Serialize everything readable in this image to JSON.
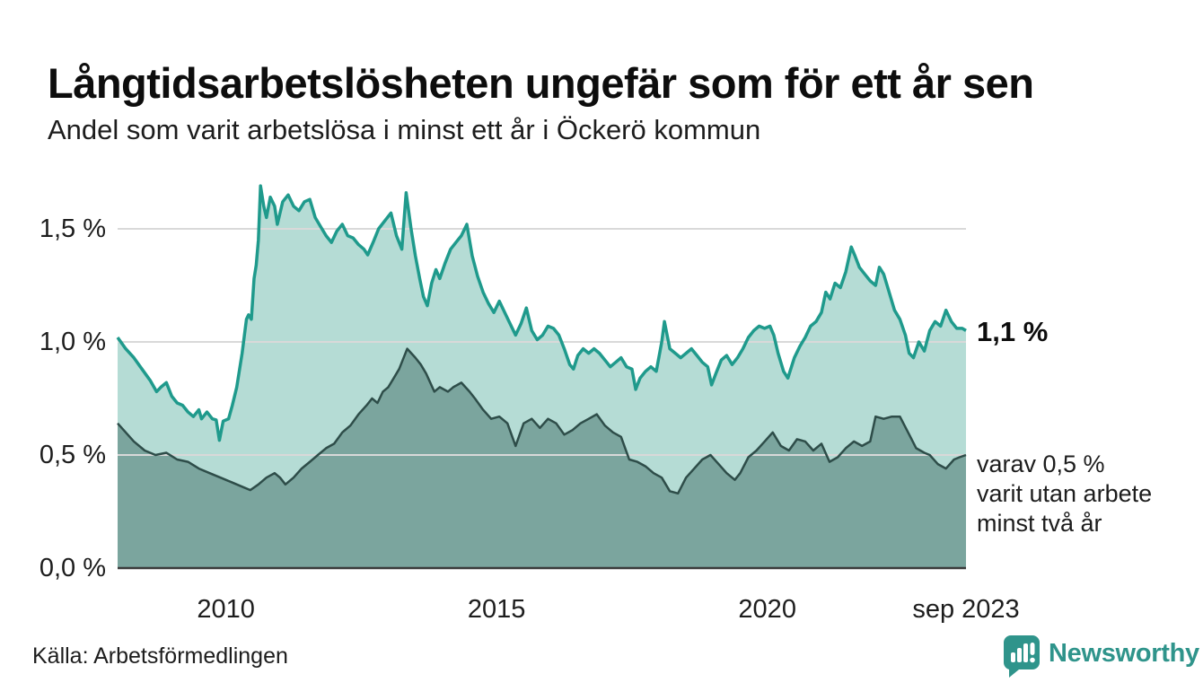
{
  "header": {
    "title": "Långtidsarbetslösheten ungefär som för ett år sen",
    "subtitle": "Andel som varit arbetslösa i minst ett år i Öckerö kommun"
  },
  "chart_data": {
    "type": "area",
    "title": "Långtidsarbetslösheten ungefär som för ett år sen",
    "subtitle": "Andel som varit arbetslösa i minst ett år i Öckerö kommun",
    "xlabel": "",
    "ylabel": "",
    "x_domain": [
      2008.0,
      2023.67
    ],
    "ylim": [
      0,
      1.78
    ],
    "grid": true,
    "y_ticks": [
      {
        "v": 0.0,
        "label": "0,0 %"
      },
      {
        "v": 0.5,
        "label": "0,5 %"
      },
      {
        "v": 1.0,
        "label": "1,0 %"
      },
      {
        "v": 1.5,
        "label": "1,5 %"
      }
    ],
    "x_ticks": [
      {
        "v": 2010,
        "label": "2010"
      },
      {
        "v": 2015,
        "label": "2015"
      },
      {
        "v": 2020,
        "label": "2020"
      },
      {
        "v": 2023.67,
        "label": "sep 2023"
      }
    ],
    "series": [
      {
        "name": "Andel som varit arbetslösa i minst ett år",
        "line_color": "#1f9a8c",
        "fill_color": "#b5dcd5",
        "line_width": 3.5,
        "points": [
          [
            2008.0,
            1.02
          ],
          [
            2008.15,
            0.97
          ],
          [
            2008.3,
            0.93
          ],
          [
            2008.45,
            0.88
          ],
          [
            2008.6,
            0.83
          ],
          [
            2008.72,
            0.78
          ],
          [
            2008.8,
            0.8
          ],
          [
            2008.9,
            0.82
          ],
          [
            2009.0,
            0.76
          ],
          [
            2009.1,
            0.73
          ],
          [
            2009.2,
            0.72
          ],
          [
            2009.3,
            0.69
          ],
          [
            2009.4,
            0.67
          ],
          [
            2009.5,
            0.7
          ],
          [
            2009.55,
            0.66
          ],
          [
            2009.65,
            0.69
          ],
          [
            2009.75,
            0.66
          ],
          [
            2009.82,
            0.655
          ],
          [
            2009.88,
            0.565
          ],
          [
            2009.95,
            0.65
          ],
          [
            2010.05,
            0.66
          ],
          [
            2010.12,
            0.72
          ],
          [
            2010.2,
            0.8
          ],
          [
            2010.3,
            0.95
          ],
          [
            2010.38,
            1.1
          ],
          [
            2010.42,
            1.12
          ],
          [
            2010.47,
            1.1
          ],
          [
            2010.52,
            1.28
          ],
          [
            2010.56,
            1.34
          ],
          [
            2010.6,
            1.45
          ],
          [
            2010.64,
            1.69
          ],
          [
            2010.7,
            1.6
          ],
          [
            2010.75,
            1.55
          ],
          [
            2010.82,
            1.64
          ],
          [
            2010.9,
            1.6
          ],
          [
            2010.95,
            1.52
          ],
          [
            2011.05,
            1.62
          ],
          [
            2011.15,
            1.65
          ],
          [
            2011.25,
            1.6
          ],
          [
            2011.35,
            1.58
          ],
          [
            2011.45,
            1.62
          ],
          [
            2011.55,
            1.63
          ],
          [
            2011.65,
            1.55
          ],
          [
            2011.75,
            1.51
          ],
          [
            2011.85,
            1.47
          ],
          [
            2011.95,
            1.44
          ],
          [
            2012.05,
            1.49
          ],
          [
            2012.15,
            1.52
          ],
          [
            2012.25,
            1.47
          ],
          [
            2012.35,
            1.46
          ],
          [
            2012.45,
            1.43
          ],
          [
            2012.55,
            1.41
          ],
          [
            2012.62,
            1.385
          ],
          [
            2012.72,
            1.44
          ],
          [
            2012.82,
            1.5
          ],
          [
            2012.95,
            1.54
          ],
          [
            2013.05,
            1.57
          ],
          [
            2013.15,
            1.47
          ],
          [
            2013.25,
            1.41
          ],
          [
            2013.33,
            1.66
          ],
          [
            2013.42,
            1.5
          ],
          [
            2013.5,
            1.38
          ],
          [
            2013.58,
            1.28
          ],
          [
            2013.65,
            1.2
          ],
          [
            2013.72,
            1.16
          ],
          [
            2013.8,
            1.26
          ],
          [
            2013.88,
            1.32
          ],
          [
            2013.95,
            1.28
          ],
          [
            2014.05,
            1.35
          ],
          [
            2014.15,
            1.41
          ],
          [
            2014.25,
            1.44
          ],
          [
            2014.35,
            1.47
          ],
          [
            2014.45,
            1.52
          ],
          [
            2014.55,
            1.38
          ],
          [
            2014.65,
            1.29
          ],
          [
            2014.75,
            1.22
          ],
          [
            2014.85,
            1.17
          ],
          [
            2014.95,
            1.13
          ],
          [
            2015.05,
            1.18
          ],
          [
            2015.15,
            1.13
          ],
          [
            2015.25,
            1.08
          ],
          [
            2015.35,
            1.03
          ],
          [
            2015.45,
            1.08
          ],
          [
            2015.55,
            1.15
          ],
          [
            2015.65,
            1.05
          ],
          [
            2015.75,
            1.01
          ],
          [
            2015.85,
            1.03
          ],
          [
            2015.95,
            1.07
          ],
          [
            2016.05,
            1.06
          ],
          [
            2016.15,
            1.03
          ],
          [
            2016.25,
            0.97
          ],
          [
            2016.35,
            0.9
          ],
          [
            2016.42,
            0.88
          ],
          [
            2016.5,
            0.94
          ],
          [
            2016.6,
            0.97
          ],
          [
            2016.7,
            0.95
          ],
          [
            2016.8,
            0.97
          ],
          [
            2016.9,
            0.95
          ],
          [
            2017.0,
            0.92
          ],
          [
            2017.1,
            0.89
          ],
          [
            2017.2,
            0.91
          ],
          [
            2017.3,
            0.93
          ],
          [
            2017.4,
            0.89
          ],
          [
            2017.5,
            0.88
          ],
          [
            2017.57,
            0.79
          ],
          [
            2017.65,
            0.84
          ],
          [
            2017.75,
            0.87
          ],
          [
            2017.85,
            0.89
          ],
          [
            2017.95,
            0.87
          ],
          [
            2018.05,
            1.0
          ],
          [
            2018.1,
            1.09
          ],
          [
            2018.2,
            0.97
          ],
          [
            2018.3,
            0.95
          ],
          [
            2018.4,
            0.93
          ],
          [
            2018.5,
            0.95
          ],
          [
            2018.6,
            0.97
          ],
          [
            2018.7,
            0.94
          ],
          [
            2018.8,
            0.91
          ],
          [
            2018.9,
            0.89
          ],
          [
            2018.97,
            0.81
          ],
          [
            2019.05,
            0.86
          ],
          [
            2019.15,
            0.92
          ],
          [
            2019.25,
            0.94
          ],
          [
            2019.35,
            0.9
          ],
          [
            2019.45,
            0.93
          ],
          [
            2019.55,
            0.97
          ],
          [
            2019.65,
            1.02
          ],
          [
            2019.75,
            1.05
          ],
          [
            2019.85,
            1.07
          ],
          [
            2019.95,
            1.06
          ],
          [
            2020.05,
            1.07
          ],
          [
            2020.12,
            1.03
          ],
          [
            2020.2,
            0.95
          ],
          [
            2020.3,
            0.87
          ],
          [
            2020.38,
            0.84
          ],
          [
            2020.5,
            0.93
          ],
          [
            2020.6,
            0.98
          ],
          [
            2020.7,
            1.02
          ],
          [
            2020.8,
            1.07
          ],
          [
            2020.9,
            1.09
          ],
          [
            2021.0,
            1.13
          ],
          [
            2021.08,
            1.22
          ],
          [
            2021.16,
            1.19
          ],
          [
            2021.25,
            1.26
          ],
          [
            2021.35,
            1.24
          ],
          [
            2021.45,
            1.31
          ],
          [
            2021.55,
            1.42
          ],
          [
            2021.62,
            1.38
          ],
          [
            2021.7,
            1.33
          ],
          [
            2021.8,
            1.3
          ],
          [
            2021.9,
            1.27
          ],
          [
            2022.0,
            1.25
          ],
          [
            2022.07,
            1.33
          ],
          [
            2022.15,
            1.3
          ],
          [
            2022.25,
            1.22
          ],
          [
            2022.35,
            1.14
          ],
          [
            2022.45,
            1.1
          ],
          [
            2022.55,
            1.03
          ],
          [
            2022.62,
            0.95
          ],
          [
            2022.7,
            0.93
          ],
          [
            2022.8,
            1.0
          ],
          [
            2022.9,
            0.96
          ],
          [
            2023.0,
            1.05
          ],
          [
            2023.1,
            1.09
          ],
          [
            2023.2,
            1.07
          ],
          [
            2023.3,
            1.14
          ],
          [
            2023.4,
            1.09
          ],
          [
            2023.5,
            1.06
          ],
          [
            2023.6,
            1.06
          ],
          [
            2023.67,
            1.05
          ]
        ]
      },
      {
        "name": "varav utan arbete minst två år",
        "line_color": "#2e4d49",
        "fill_color": "#7ba59e",
        "line_width": 2.5,
        "points": [
          [
            2008.0,
            0.64
          ],
          [
            2008.3,
            0.56
          ],
          [
            2008.5,
            0.52
          ],
          [
            2008.7,
            0.5
          ],
          [
            2008.9,
            0.51
          ],
          [
            2009.1,
            0.48
          ],
          [
            2009.3,
            0.47
          ],
          [
            2009.5,
            0.44
          ],
          [
            2009.7,
            0.42
          ],
          [
            2009.9,
            0.4
          ],
          [
            2010.1,
            0.38
          ],
          [
            2010.3,
            0.36
          ],
          [
            2010.45,
            0.345
          ],
          [
            2010.6,
            0.37
          ],
          [
            2010.75,
            0.4
          ],
          [
            2010.9,
            0.42
          ],
          [
            2011.0,
            0.4
          ],
          [
            2011.1,
            0.37
          ],
          [
            2011.25,
            0.4
          ],
          [
            2011.4,
            0.44
          ],
          [
            2011.55,
            0.47
          ],
          [
            2011.7,
            0.5
          ],
          [
            2011.85,
            0.53
          ],
          [
            2012.0,
            0.55
          ],
          [
            2012.15,
            0.6
          ],
          [
            2012.3,
            0.63
          ],
          [
            2012.45,
            0.68
          ],
          [
            2012.6,
            0.72
          ],
          [
            2012.7,
            0.75
          ],
          [
            2012.8,
            0.73
          ],
          [
            2012.9,
            0.78
          ],
          [
            2013.0,
            0.8
          ],
          [
            2013.1,
            0.84
          ],
          [
            2013.2,
            0.88
          ],
          [
            2013.35,
            0.97
          ],
          [
            2013.5,
            0.93
          ],
          [
            2013.6,
            0.9
          ],
          [
            2013.7,
            0.86
          ],
          [
            2013.85,
            0.78
          ],
          [
            2013.95,
            0.8
          ],
          [
            2014.1,
            0.78
          ],
          [
            2014.2,
            0.8
          ],
          [
            2014.35,
            0.82
          ],
          [
            2014.5,
            0.78
          ],
          [
            2014.6,
            0.75
          ],
          [
            2014.75,
            0.7
          ],
          [
            2014.9,
            0.66
          ],
          [
            2015.05,
            0.67
          ],
          [
            2015.2,
            0.64
          ],
          [
            2015.35,
            0.54
          ],
          [
            2015.5,
            0.64
          ],
          [
            2015.65,
            0.66
          ],
          [
            2015.8,
            0.62
          ],
          [
            2015.95,
            0.66
          ],
          [
            2016.1,
            0.64
          ],
          [
            2016.25,
            0.59
          ],
          [
            2016.4,
            0.61
          ],
          [
            2016.55,
            0.64
          ],
          [
            2016.7,
            0.66
          ],
          [
            2016.85,
            0.68
          ],
          [
            2017.0,
            0.63
          ],
          [
            2017.15,
            0.6
          ],
          [
            2017.3,
            0.58
          ],
          [
            2017.45,
            0.48
          ],
          [
            2017.6,
            0.47
          ],
          [
            2017.75,
            0.45
          ],
          [
            2017.9,
            0.42
          ],
          [
            2018.05,
            0.4
          ],
          [
            2018.2,
            0.34
          ],
          [
            2018.35,
            0.33
          ],
          [
            2018.5,
            0.4
          ],
          [
            2018.65,
            0.44
          ],
          [
            2018.8,
            0.48
          ],
          [
            2018.95,
            0.5
          ],
          [
            2019.1,
            0.46
          ],
          [
            2019.25,
            0.42
          ],
          [
            2019.4,
            0.39
          ],
          [
            2019.5,
            0.42
          ],
          [
            2019.65,
            0.49
          ],
          [
            2019.8,
            0.52
          ],
          [
            2019.95,
            0.56
          ],
          [
            2020.1,
            0.6
          ],
          [
            2020.25,
            0.54
          ],
          [
            2020.4,
            0.52
          ],
          [
            2020.55,
            0.57
          ],
          [
            2020.7,
            0.56
          ],
          [
            2020.85,
            0.52
          ],
          [
            2021.0,
            0.55
          ],
          [
            2021.15,
            0.47
          ],
          [
            2021.3,
            0.49
          ],
          [
            2021.45,
            0.53
          ],
          [
            2021.6,
            0.56
          ],
          [
            2021.75,
            0.54
          ],
          [
            2021.9,
            0.56
          ],
          [
            2022.0,
            0.67
          ],
          [
            2022.15,
            0.66
          ],
          [
            2022.3,
            0.67
          ],
          [
            2022.45,
            0.67
          ],
          [
            2022.6,
            0.6
          ],
          [
            2022.75,
            0.53
          ],
          [
            2022.9,
            0.51
          ],
          [
            2023.0,
            0.5
          ],
          [
            2023.15,
            0.46
          ],
          [
            2023.3,
            0.44
          ],
          [
            2023.45,
            0.48
          ],
          [
            2023.55,
            0.49
          ],
          [
            2023.67,
            0.5
          ]
        ]
      }
    ],
    "annotations": {
      "end_label": "1,1 %",
      "note_lines": [
        "varav 0,5 %",
        "varit utan arbete",
        "minst två år"
      ]
    },
    "legend_position": "none"
  },
  "footer": {
    "source": "Källa: Arbetsförmedlingen",
    "brand": "Newsworthy"
  },
  "colors": {
    "accent_line": "#1f9a8c",
    "fill_light": "#b5dcd5",
    "dark_line": "#2e4d49",
    "fill_dark": "#7ba59e",
    "grid": "#d9d9d9",
    "baseline": "#3a3a3a",
    "brand_teal": "#2f948b",
    "text": "#1d1d1d"
  }
}
